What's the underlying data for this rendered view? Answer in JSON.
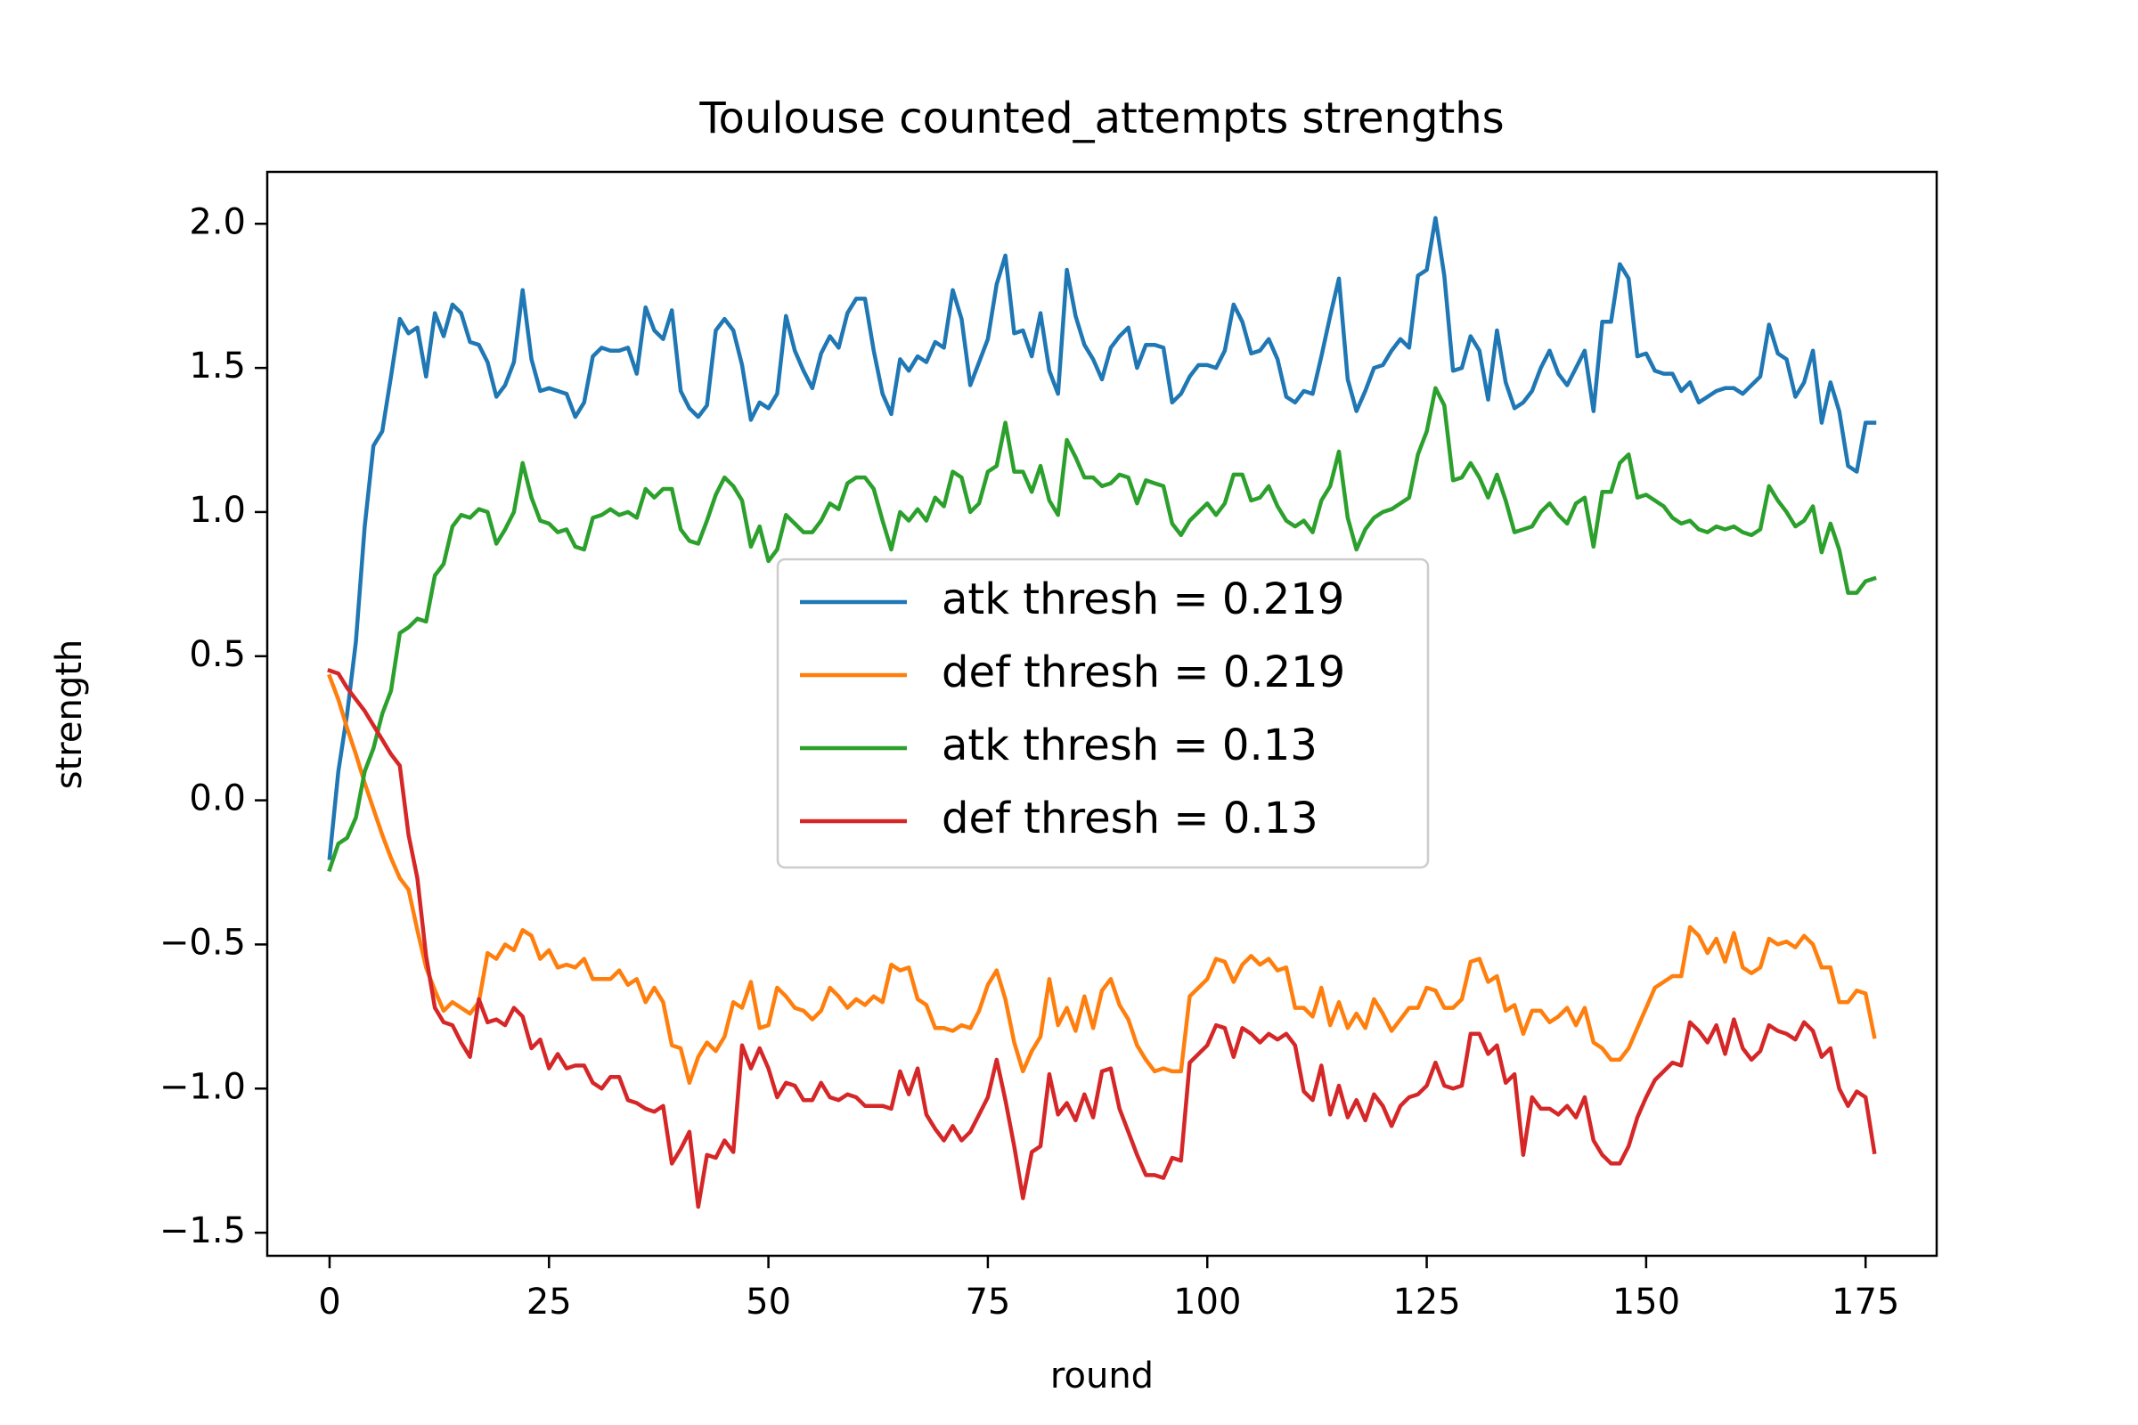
{
  "chart_data": {
    "type": "line",
    "title": "Toulouse counted_attempts strengths",
    "xlabel": "round",
    "ylabel": "strength",
    "xlim": [
      -7.1,
      183.1
    ],
    "ylim": [
      -1.58,
      2.18
    ],
    "xticks": [
      0,
      25,
      50,
      75,
      100,
      125,
      150,
      175
    ],
    "xtick_labels": [
      "0",
      "25",
      "50",
      "75",
      "100",
      "125",
      "150",
      "175"
    ],
    "yticks": [
      -1.5,
      -1.0,
      -0.5,
      0.0,
      0.5,
      1.0,
      1.5,
      2.0
    ],
    "ytick_labels": [
      "−1.5",
      "−1.0",
      "−0.5",
      "0.0",
      "0.5",
      "1.0",
      "1.5",
      "2.0"
    ],
    "grid": false,
    "legend_position": "center",
    "x": {
      "start": 0,
      "end": 175,
      "step": 1
    },
    "series": [
      {
        "name": "atk thresh = 0.219",
        "color": "#1f77b4",
        "values": [
          -0.2,
          0.1,
          0.3,
          0.55,
          0.95,
          1.23,
          1.28,
          1.47,
          1.67,
          1.62,
          1.64,
          1.47,
          1.69,
          1.61,
          1.72,
          1.69,
          1.59,
          1.58,
          1.52,
          1.4,
          1.44,
          1.52,
          1.77,
          1.53,
          1.42,
          1.43,
          1.42,
          1.41,
          1.33,
          1.38,
          1.54,
          1.57,
          1.56,
          1.56,
          1.57,
          1.48,
          1.71,
          1.63,
          1.6,
          1.7,
          1.42,
          1.36,
          1.33,
          1.37,
          1.63,
          1.67,
          1.63,
          1.51,
          1.32,
          1.38,
          1.36,
          1.41,
          1.68,
          1.56,
          1.49,
          1.43,
          1.55,
          1.61,
          1.57,
          1.69,
          1.74,
          1.74,
          1.56,
          1.41,
          1.34,
          1.53,
          1.49,
          1.54,
          1.52,
          1.59,
          1.57,
          1.77,
          1.67,
          1.44,
          1.52,
          1.6,
          1.79,
          1.89,
          1.62,
          1.63,
          1.54,
          1.69,
          1.49,
          1.41,
          1.84,
          1.68,
          1.58,
          1.53,
          1.46,
          1.57,
          1.61,
          1.64,
          1.5,
          1.58,
          1.58,
          1.57,
          1.38,
          1.41,
          1.47,
          1.51,
          1.51,
          1.5,
          1.56,
          1.72,
          1.66,
          1.55,
          1.56,
          1.6,
          1.53,
          1.4,
          1.38,
          1.42,
          1.41,
          1.54,
          1.68,
          1.81,
          1.46,
          1.35,
          1.42,
          1.5,
          1.51,
          1.56,
          1.6,
          1.57,
          1.82,
          1.84,
          2.02,
          1.82,
          1.49,
          1.5,
          1.61,
          1.56,
          1.39,
          1.63,
          1.45,
          1.36,
          1.38,
          1.42,
          1.5,
          1.56,
          1.48,
          1.44,
          1.5,
          1.56,
          1.35,
          1.66,
          1.66,
          1.86,
          1.81,
          1.54,
          1.55,
          1.49,
          1.48,
          1.48,
          1.42,
          1.45,
          1.38,
          1.4,
          1.42,
          1.43,
          1.43,
          1.41,
          1.44,
          1.47,
          1.65,
          1.55,
          1.53,
          1.4,
          1.45,
          1.56,
          1.31,
          1.45,
          1.35,
          1.16,
          1.14,
          1.31,
          1.31
        ]
      },
      {
        "name": "def thresh = 0.219",
        "color": "#ff7f0e",
        "values": [
          0.43,
          0.35,
          0.25,
          0.16,
          0.06,
          -0.03,
          -0.12,
          -0.2,
          -0.27,
          -0.31,
          -0.45,
          -0.58,
          -0.66,
          -0.73,
          -0.7,
          -0.72,
          -0.74,
          -0.7,
          -0.53,
          -0.55,
          -0.5,
          -0.52,
          -0.45,
          -0.47,
          -0.55,
          -0.52,
          -0.58,
          -0.57,
          -0.58,
          -0.55,
          -0.62,
          -0.62,
          -0.62,
          -0.59,
          -0.64,
          -0.62,
          -0.7,
          -0.65,
          -0.7,
          -0.85,
          -0.86,
          -0.98,
          -0.89,
          -0.84,
          -0.87,
          -0.82,
          -0.7,
          -0.72,
          -0.63,
          -0.79,
          -0.78,
          -0.65,
          -0.68,
          -0.72,
          -0.73,
          -0.76,
          -0.73,
          -0.65,
          -0.68,
          -0.72,
          -0.69,
          -0.71,
          -0.68,
          -0.7,
          -0.57,
          -0.59,
          -0.58,
          -0.69,
          -0.71,
          -0.79,
          -0.79,
          -0.8,
          -0.78,
          -0.79,
          -0.73,
          -0.64,
          -0.59,
          -0.69,
          -0.84,
          -0.94,
          -0.87,
          -0.82,
          -0.62,
          -0.78,
          -0.72,
          -0.8,
          -0.68,
          -0.79,
          -0.66,
          -0.62,
          -0.71,
          -0.76,
          -0.85,
          -0.9,
          -0.94,
          -0.93,
          -0.94,
          -0.94,
          -0.68,
          -0.65,
          -0.62,
          -0.55,
          -0.56,
          -0.63,
          -0.57,
          -0.54,
          -0.57,
          -0.55,
          -0.59,
          -0.58,
          -0.72,
          -0.72,
          -0.75,
          -0.65,
          -0.78,
          -0.7,
          -0.79,
          -0.74,
          -0.79,
          -0.69,
          -0.74,
          -0.8,
          -0.76,
          -0.72,
          -0.72,
          -0.65,
          -0.66,
          -0.72,
          -0.72,
          -0.69,
          -0.56,
          -0.55,
          -0.63,
          -0.61,
          -0.73,
          -0.71,
          -0.81,
          -0.73,
          -0.73,
          -0.77,
          -0.75,
          -0.72,
          -0.78,
          -0.72,
          -0.84,
          -0.86,
          -0.9,
          -0.9,
          -0.86,
          -0.79,
          -0.72,
          -0.65,
          -0.63,
          -0.61,
          -0.61,
          -0.44,
          -0.47,
          -0.53,
          -0.48,
          -0.56,
          -0.46,
          -0.58,
          -0.6,
          -0.58,
          -0.48,
          -0.5,
          -0.49,
          -0.51,
          -0.47,
          -0.5,
          -0.58,
          -0.58,
          -0.7,
          -0.7,
          -0.66,
          -0.67,
          -0.82
        ]
      },
      {
        "name": "atk thresh = 0.13",
        "color": "#2ca02c",
        "values": [
          -0.24,
          -0.15,
          -0.13,
          -0.06,
          0.1,
          0.18,
          0.3,
          0.38,
          0.58,
          0.6,
          0.63,
          0.62,
          0.78,
          0.82,
          0.95,
          0.99,
          0.98,
          1.01,
          1.0,
          0.89,
          0.94,
          1.0,
          1.17,
          1.05,
          0.97,
          0.96,
          0.93,
          0.94,
          0.88,
          0.87,
          0.98,
          0.99,
          1.01,
          0.99,
          1.0,
          0.98,
          1.08,
          1.05,
          1.08,
          1.08,
          0.94,
          0.9,
          0.89,
          0.97,
          1.06,
          1.12,
          1.09,
          1.04,
          0.88,
          0.95,
          0.83,
          0.87,
          0.99,
          0.96,
          0.93,
          0.93,
          0.97,
          1.03,
          1.01,
          1.1,
          1.12,
          1.12,
          1.08,
          0.97,
          0.87,
          1.0,
          0.97,
          1.01,
          0.97,
          1.05,
          1.02,
          1.14,
          1.12,
          1.0,
          1.03,
          1.14,
          1.16,
          1.31,
          1.14,
          1.14,
          1.07,
          1.16,
          1.04,
          0.99,
          1.25,
          1.19,
          1.12,
          1.12,
          1.09,
          1.1,
          1.13,
          1.12,
          1.03,
          1.11,
          1.1,
          1.09,
          0.96,
          0.92,
          0.97,
          1.0,
          1.03,
          0.99,
          1.03,
          1.13,
          1.13,
          1.04,
          1.05,
          1.09,
          1.02,
          0.97,
          0.95,
          0.97,
          0.93,
          1.04,
          1.09,
          1.21,
          0.98,
          0.87,
          0.94,
          0.98,
          1.0,
          1.01,
          1.03,
          1.05,
          1.2,
          1.28,
          1.43,
          1.37,
          1.11,
          1.12,
          1.17,
          1.12,
          1.05,
          1.13,
          1.04,
          0.93,
          0.94,
          0.95,
          1.0,
          1.03,
          0.99,
          0.96,
          1.03,
          1.05,
          0.88,
          1.07,
          1.07,
          1.17,
          1.2,
          1.05,
          1.06,
          1.04,
          1.02,
          0.98,
          0.96,
          0.97,
          0.94,
          0.93,
          0.95,
          0.94,
          0.95,
          0.93,
          0.92,
          0.94,
          1.09,
          1.04,
          1.0,
          0.95,
          0.97,
          1.02,
          0.86,
          0.96,
          0.87,
          0.72,
          0.72,
          0.76,
          0.77
        ]
      },
      {
        "name": "def thresh = 0.13",
        "color": "#d62728",
        "values": [
          0.45,
          0.44,
          0.39,
          0.35,
          0.31,
          0.26,
          0.21,
          0.16,
          0.12,
          -0.12,
          -0.27,
          -0.54,
          -0.72,
          -0.77,
          -0.78,
          -0.84,
          -0.89,
          -0.69,
          -0.77,
          -0.76,
          -0.78,
          -0.72,
          -0.75,
          -0.86,
          -0.83,
          -0.93,
          -0.88,
          -0.93,
          -0.92,
          -0.92,
          -0.98,
          -1.0,
          -0.96,
          -0.96,
          -1.04,
          -1.05,
          -1.07,
          -1.08,
          -1.06,
          -1.26,
          -1.21,
          -1.15,
          -1.41,
          -1.23,
          -1.24,
          -1.18,
          -1.22,
          -0.85,
          -0.93,
          -0.86,
          -0.93,
          -1.03,
          -0.98,
          -0.99,
          -1.04,
          -1.04,
          -0.98,
          -1.03,
          -1.04,
          -1.02,
          -1.03,
          -1.06,
          -1.06,
          -1.06,
          -1.07,
          -0.94,
          -1.02,
          -0.93,
          -1.09,
          -1.14,
          -1.18,
          -1.13,
          -1.18,
          -1.15,
          -1.09,
          -1.03,
          -0.9,
          -1.04,
          -1.2,
          -1.38,
          -1.22,
          -1.2,
          -0.95,
          -1.09,
          -1.05,
          -1.11,
          -1.02,
          -1.1,
          -0.94,
          -0.93,
          -1.07,
          -1.15,
          -1.23,
          -1.3,
          -1.3,
          -1.31,
          -1.24,
          -1.25,
          -0.91,
          -0.88,
          -0.85,
          -0.78,
          -0.79,
          -0.89,
          -0.79,
          -0.81,
          -0.84,
          -0.81,
          -0.83,
          -0.81,
          -0.85,
          -1.01,
          -1.04,
          -0.92,
          -1.09,
          -0.99,
          -1.1,
          -1.04,
          -1.11,
          -1.02,
          -1.06,
          -1.13,
          -1.06,
          -1.03,
          -1.02,
          -0.99,
          -0.91,
          -0.99,
          -1.0,
          -0.99,
          -0.81,
          -0.81,
          -0.88,
          -0.85,
          -0.98,
          -0.95,
          -1.23,
          -1.03,
          -1.07,
          -1.07,
          -1.09,
          -1.06,
          -1.1,
          -1.03,
          -1.18,
          -1.23,
          -1.26,
          -1.26,
          -1.2,
          -1.1,
          -1.03,
          -0.97,
          -0.94,
          -0.91,
          -0.92,
          -0.77,
          -0.8,
          -0.84,
          -0.78,
          -0.88,
          -0.76,
          -0.86,
          -0.9,
          -0.87,
          -0.78,
          -0.8,
          -0.81,
          -0.83,
          -0.77,
          -0.8,
          -0.89,
          -0.86,
          -1.0,
          -1.06,
          -1.01,
          -1.03,
          -1.22
        ]
      }
    ]
  }
}
